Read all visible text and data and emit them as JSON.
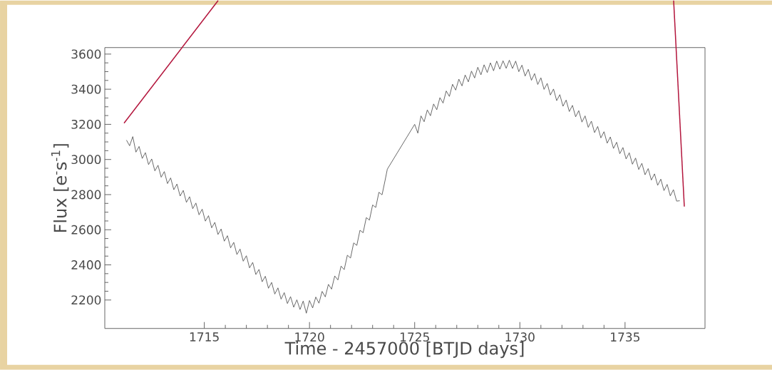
{
  "chart_data": {
    "type": "line",
    "xlabel": "Time - 2457000 [BTJD days]",
    "ylabel": "Flux [e$^{-}$s$^{-1}$]",
    "xlim": [
      1710.27,
      1738.8
    ],
    "ylim": [
      2038,
      3637
    ],
    "xticks": [
      1715,
      1720,
      1725,
      1730,
      1735
    ],
    "yticks": [
      2200,
      2400,
      2600,
      2800,
      3000,
      3200,
      3400,
      3600
    ],
    "marker": "none",
    "line_style": "solid",
    "series": [
      {
        "color": "#444444",
        "x": [
          1711.3,
          1711.45,
          1711.6,
          1711.75,
          1711.9,
          1712.05,
          1712.2,
          1712.35,
          1712.5,
          1712.65,
          1712.8,
          1712.95,
          1713.1,
          1713.25,
          1713.4,
          1713.55,
          1713.7,
          1713.85,
          1714.0,
          1714.15,
          1714.3,
          1714.45,
          1714.6,
          1714.75,
          1714.9,
          1715.05,
          1715.2,
          1715.35,
          1715.5,
          1715.65,
          1715.8,
          1715.95,
          1716.1,
          1716.25,
          1716.4,
          1716.55,
          1716.7,
          1716.85,
          1717.0,
          1717.15,
          1717.3,
          1717.45,
          1717.6,
          1717.75,
          1717.9,
          1718.05,
          1718.2,
          1718.35,
          1718.5,
          1718.65,
          1718.8,
          1718.95,
          1719.1,
          1719.25,
          1719.4,
          1719.55,
          1719.7,
          1719.85,
          1720.0,
          1720.15,
          1720.3,
          1720.45,
          1720.6,
          1720.75,
          1720.9,
          1721.05,
          1721.2,
          1721.35,
          1721.5,
          1721.65,
          1721.8,
          1721.95,
          1722.1,
          1722.25,
          1722.4,
          1722.55,
          1722.7,
          1722.85,
          1723.0,
          1723.15,
          1723.3,
          1723.45,
          1723.6,
          1723.7,
          1725.0,
          1725.15,
          1725.3,
          1725.45,
          1725.6,
          1725.75,
          1725.9,
          1726.05,
          1726.2,
          1726.35,
          1726.5,
          1726.65,
          1726.8,
          1726.95,
          1727.1,
          1727.25,
          1727.4,
          1727.55,
          1727.7,
          1727.85,
          1728.0,
          1728.15,
          1728.3,
          1728.45,
          1728.6,
          1728.75,
          1728.9,
          1729.05,
          1729.2,
          1729.35,
          1729.5,
          1729.65,
          1729.8,
          1729.95,
          1730.1,
          1730.25,
          1730.4,
          1730.55,
          1730.7,
          1730.85,
          1731.0,
          1731.15,
          1731.3,
          1731.45,
          1731.6,
          1731.75,
          1731.9,
          1732.05,
          1732.2,
          1732.35,
          1732.5,
          1732.65,
          1732.8,
          1732.95,
          1733.1,
          1733.25,
          1733.4,
          1733.55,
          1733.7,
          1733.85,
          1734.0,
          1734.15,
          1734.3,
          1734.45,
          1734.6,
          1734.75,
          1734.9,
          1735.05,
          1735.2,
          1735.35,
          1735.5,
          1735.65,
          1735.8,
          1735.95,
          1736.1,
          1736.25,
          1736.4,
          1736.55,
          1736.7,
          1736.85,
          1737.0,
          1737.15,
          1737.3,
          1737.45,
          1737.6
        ],
        "values": [
          3110,
          3078,
          3130,
          3042,
          3074,
          3006,
          3039,
          2971,
          3003,
          2935,
          2967,
          2899,
          2931,
          2863,
          2895,
          2828,
          2860,
          2792,
          2824,
          2756,
          2788,
          2720,
          2752,
          2685,
          2717,
          2649,
          2680,
          2611,
          2642,
          2573,
          2604,
          2535,
          2566,
          2497,
          2528,
          2459,
          2490,
          2421,
          2452,
          2383,
          2414,
          2345,
          2374,
          2304,
          2335,
          2267,
          2300,
          2234,
          2269,
          2205,
          2242,
          2180,
          2219,
          2159,
          2201,
          2146,
          2194,
          2125,
          2197,
          2155,
          2217,
          2182,
          2249,
          2218,
          2289,
          2262,
          2337,
          2314,
          2393,
          2373,
          2455,
          2439,
          2525,
          2511,
          2597,
          2583,
          2669,
          2655,
          2741,
          2727,
          2813,
          2799,
          2885,
          2945,
          3200,
          3150,
          3248,
          3215,
          3282,
          3249,
          3316,
          3283,
          3352,
          3321,
          3390,
          3359,
          3428,
          3395,
          3457,
          3419,
          3481,
          3442,
          3503,
          3464,
          3525,
          3482,
          3539,
          3495,
          3550,
          3505,
          3560,
          3514,
          3562,
          3519,
          3565,
          3518,
          3560,
          3500,
          3537,
          3475,
          3513,
          3451,
          3489,
          3427,
          3465,
          3399,
          3433,
          3367,
          3401,
          3335,
          3369,
          3303,
          3338,
          3273,
          3308,
          3243,
          3278,
          3213,
          3248,
          3183,
          3218,
          3153,
          3188,
          3123,
          3158,
          3093,
          3128,
          3063,
          3098,
          3033,
          3068,
          3003,
          3038,
          2973,
          3008,
          2943,
          2978,
          2913,
          2948,
          2883,
          2918,
          2853,
          2888,
          2823,
          2858,
          2793,
          2828,
          2763,
          2765
        ]
      }
    ]
  }
}
